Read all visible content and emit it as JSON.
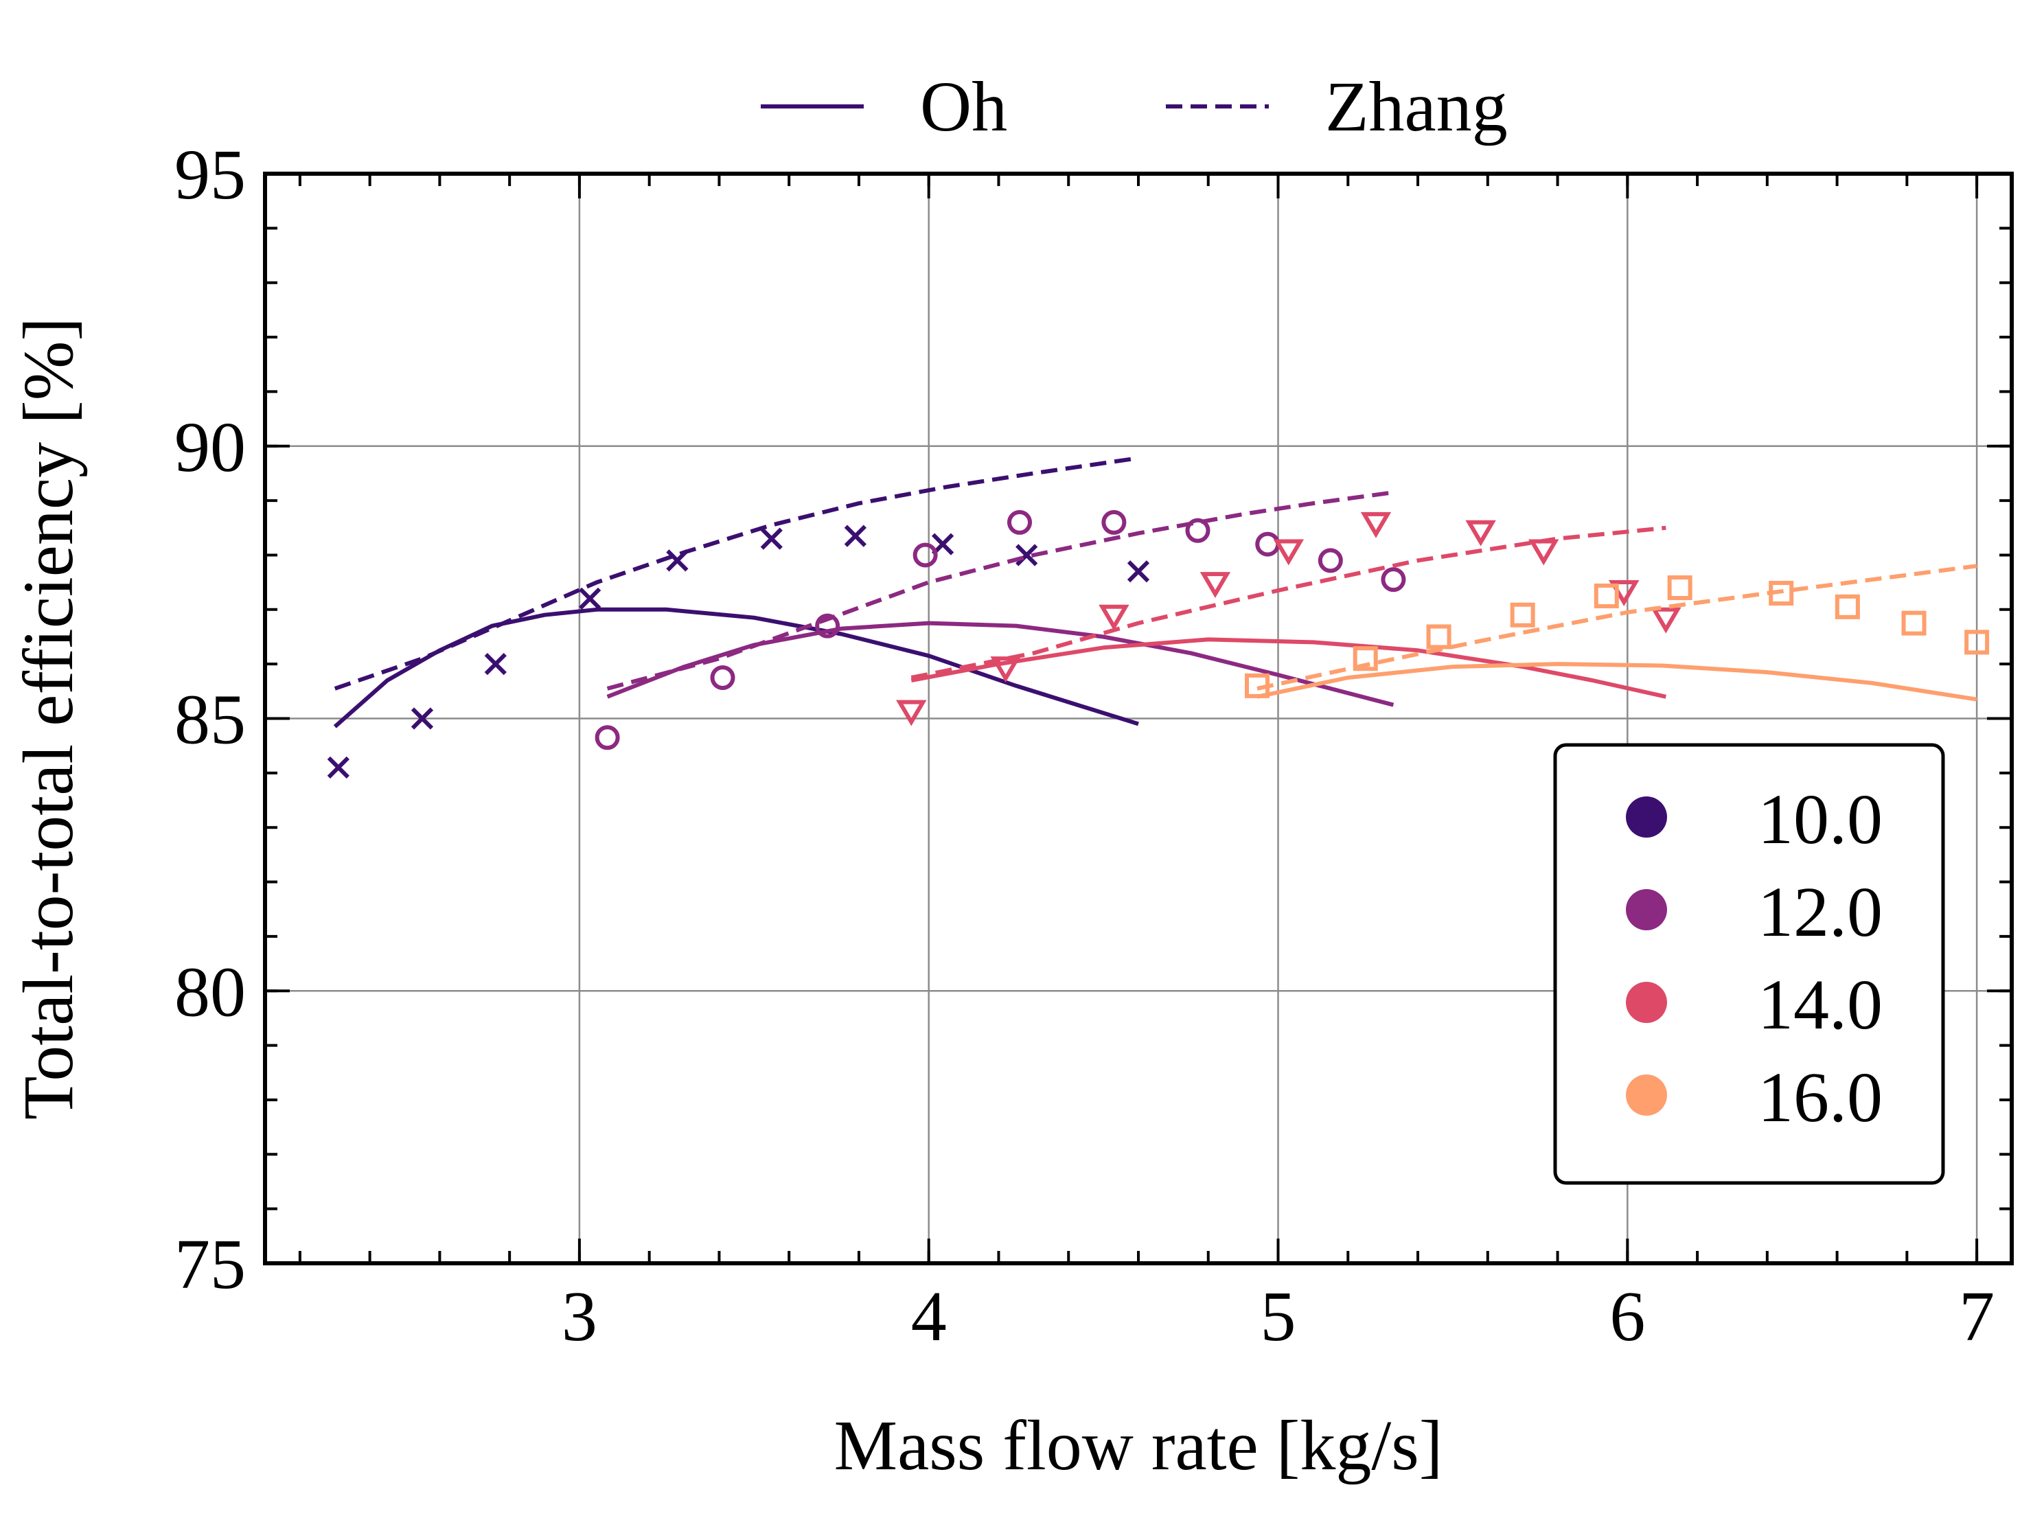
{
  "chart_data": {
    "type": "scatter",
    "title": "",
    "xlabel": "Mass flow rate [kg/s]",
    "ylabel": "Total-to-total efficiency [%]",
    "xlim": [
      2.1,
      7.1
    ],
    "ylim": [
      75,
      95
    ],
    "xticks": [
      3,
      4,
      5,
      6,
      7
    ],
    "xtick_labels": [
      "3",
      "4",
      "5",
      "6",
      "7"
    ],
    "yticks": [
      75,
      80,
      85,
      90,
      95
    ],
    "ytick_labels": [
      "75",
      "80",
      "85",
      "90",
      "95"
    ],
    "grid": true,
    "line_legend": {
      "placement": "top-center",
      "entries": [
        {
          "label": "Oh",
          "style": "solid"
        },
        {
          "label": "Zhang",
          "style": "dashed"
        }
      ]
    },
    "color_legend": {
      "placement": "bottom-right",
      "entries": [
        {
          "label": "10.0",
          "color": "#3b0f70"
        },
        {
          "label": "12.0",
          "color": "#8c2981"
        },
        {
          "label": "14.0",
          "color": "#de4968"
        },
        {
          "label": "16.0",
          "color": "#fe9f6d"
        }
      ]
    },
    "series": [
      {
        "name": "10.0",
        "color": "#3b0f70",
        "marker": "x",
        "points": {
          "x": [
            2.31,
            2.55,
            2.76,
            3.03,
            3.28,
            3.55,
            3.79,
            4.04,
            4.28,
            4.6
          ],
          "y": [
            84.1,
            85.0,
            86.0,
            87.2,
            87.9,
            88.3,
            88.35,
            88.2,
            88.0,
            87.7
          ]
        },
        "oh": {
          "x": [
            2.3,
            2.45,
            2.6,
            2.75,
            2.9,
            3.05,
            3.25,
            3.5,
            3.75,
            4.0,
            4.25,
            4.45,
            4.6
          ],
          "y": [
            84.85,
            85.7,
            86.25,
            86.7,
            86.9,
            87.0,
            87.0,
            86.85,
            86.55,
            86.15,
            85.6,
            85.2,
            84.9
          ]
        },
        "zhang": {
          "x": [
            2.3,
            2.55,
            2.8,
            3.05,
            3.3,
            3.55,
            3.8,
            4.05,
            4.3,
            4.6
          ],
          "y": [
            85.55,
            86.1,
            86.8,
            87.5,
            88.05,
            88.55,
            88.95,
            89.25,
            89.5,
            89.78
          ]
        }
      },
      {
        "name": "12.0",
        "color": "#8c2981",
        "marker": "o",
        "points": {
          "x": [
            3.08,
            3.41,
            3.71,
            3.99,
            4.26,
            4.53,
            4.77,
            4.97,
            5.15,
            5.33
          ],
          "y": [
            84.65,
            85.75,
            86.7,
            88.0,
            88.6,
            88.6,
            88.45,
            88.2,
            87.9,
            87.55
          ]
        },
        "oh": {
          "x": [
            3.08,
            3.3,
            3.5,
            3.75,
            4.0,
            4.25,
            4.5,
            4.75,
            5.0,
            5.15,
            5.33
          ],
          "y": [
            85.4,
            85.95,
            86.35,
            86.65,
            86.75,
            86.7,
            86.5,
            86.2,
            85.8,
            85.55,
            85.25
          ]
        },
        "zhang": {
          "x": [
            3.08,
            3.4,
            3.7,
            4.0,
            4.3,
            4.6,
            4.9,
            5.1,
            5.33
          ],
          "y": [
            85.55,
            86.1,
            86.8,
            87.5,
            88.0,
            88.4,
            88.75,
            88.95,
            89.15
          ]
        }
      },
      {
        "name": "14.0",
        "color": "#de4968",
        "marker": "v",
        "points": {
          "x": [
            3.95,
            4.22,
            4.53,
            4.82,
            5.03,
            5.28,
            5.58,
            5.76,
            5.99,
            6.11
          ],
          "y": [
            85.15,
            85.95,
            86.9,
            87.5,
            88.1,
            88.6,
            88.45,
            88.1,
            87.35,
            86.85
          ]
        },
        "oh": {
          "x": [
            3.95,
            4.2,
            4.5,
            4.8,
            5.1,
            5.4,
            5.7,
            5.9,
            6.11
          ],
          "y": [
            85.7,
            86.0,
            86.3,
            86.45,
            86.4,
            86.25,
            85.95,
            85.7,
            85.4
          ]
        },
        "zhang": {
          "x": [
            3.95,
            4.3,
            4.6,
            5.0,
            5.4,
            5.8,
            6.11
          ],
          "y": [
            85.75,
            86.2,
            86.75,
            87.35,
            87.9,
            88.3,
            88.5
          ]
        }
      },
      {
        "name": "16.0",
        "color": "#fe9f6d",
        "marker": "s",
        "points": {
          "x": [
            4.94,
            5.25,
            5.46,
            5.7,
            5.94,
            6.15,
            6.44,
            6.63,
            6.82,
            7.0
          ],
          "y": [
            85.6,
            86.1,
            86.5,
            86.9,
            87.25,
            87.4,
            87.3,
            87.05,
            86.75,
            86.4
          ]
        },
        "oh": {
          "x": [
            4.94,
            5.2,
            5.5,
            5.8,
            6.1,
            6.4,
            6.7,
            7.0
          ],
          "y": [
            85.4,
            85.75,
            85.95,
            86.0,
            85.97,
            85.85,
            85.65,
            85.35
          ]
        },
        "zhang": {
          "x": [
            4.94,
            5.3,
            5.6,
            6.0,
            6.4,
            6.7,
            7.0
          ],
          "y": [
            85.55,
            86.05,
            86.45,
            86.95,
            87.3,
            87.55,
            87.8
          ]
        }
      }
    ]
  }
}
